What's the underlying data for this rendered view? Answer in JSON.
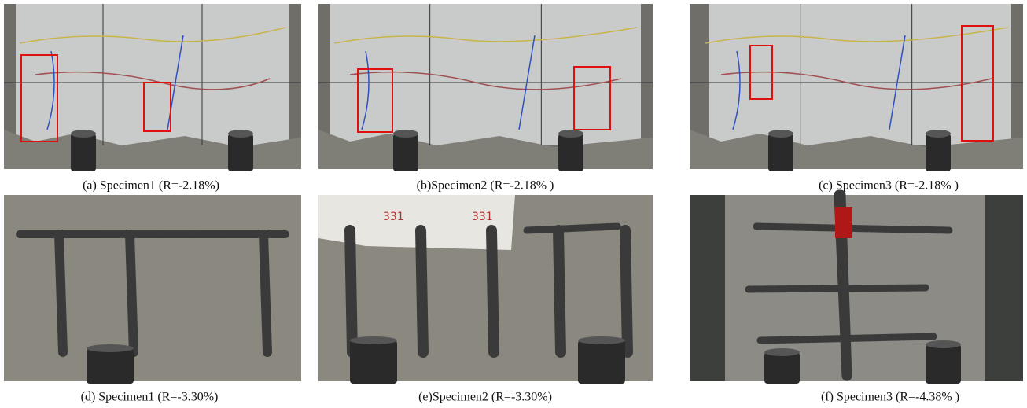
{
  "figure": {
    "panels": [
      {
        "caption": "(a) Specimen1  (R=-2.18%)"
      },
      {
        "caption": "(b)Specimen2  (R=-2.18% )"
      },
      {
        "caption": "(c) Specimen3  (R=-2.18% )"
      },
      {
        "caption": "(d) Specimen1  (R=-3.30%)"
      },
      {
        "caption": "(e)Specimen2  (R=-3.30%)",
        "annotations": [
          "331",
          "331"
        ]
      },
      {
        "caption": "(f) Specimen3  (R=-4.38% )"
      }
    ]
  }
}
